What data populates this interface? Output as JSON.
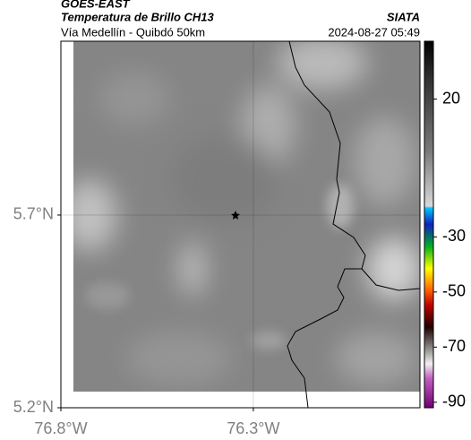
{
  "header": {
    "title": "GOES-EAST",
    "subtitle": "Temperatura de Brillo CH13",
    "source": "SIATA",
    "route": "Vía Medellín - Quibdó 50km",
    "timestamp": "2024-08-27 05:49"
  },
  "map": {
    "xlim": [
      -76.8,
      -75.867
    ],
    "ylim": [
      5.2,
      6.151
    ],
    "xticks": [
      {
        "value": -76.8,
        "label": "76.8°W"
      },
      {
        "value": -76.3,
        "label": "76.3°W"
      }
    ],
    "yticks": [
      {
        "value": 5.2,
        "label": "5.2°N"
      },
      {
        "value": 5.7,
        "label": "5.7°N"
      }
    ],
    "grid": true
  },
  "colorbar": {
    "lim": [
      -92,
      41
    ],
    "ticks": [
      20,
      -30,
      -50,
      -70,
      -90
    ]
  }
}
